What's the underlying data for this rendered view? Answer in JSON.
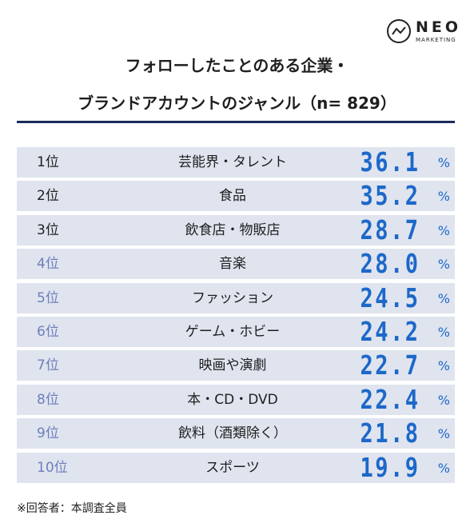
{
  "logo": {
    "main": "NEO",
    "sub": "MARKETING"
  },
  "title_line1": "フォローしたことのある企業・",
  "title_line2": "ブランドアカウントのジャンル（n= 829）",
  "footnote": "※回答者：本調査全員",
  "colors": {
    "value": "#1d68c9",
    "row_bg": "#dfe4ef",
    "rank_top": "#1f1f1f",
    "rank_low": "#6f7fb8",
    "rule": "#1a2a5a"
  },
  "chart_data": {
    "type": "table",
    "title": "フォローしたことのある企業・ブランドアカウントのジャンル（n= 829）",
    "unit": "%",
    "rows": [
      {
        "rank": "1位",
        "genre": "芸能界・タレント",
        "value": "36.1"
      },
      {
        "rank": "2位",
        "genre": "食品",
        "value": "35.2"
      },
      {
        "rank": "3位",
        "genre": "飲食店・物販店",
        "value": "28.7"
      },
      {
        "rank": "4位",
        "genre": "音楽",
        "value": "28.0"
      },
      {
        "rank": "5位",
        "genre": "ファッション",
        "value": "24.5"
      },
      {
        "rank": "6位",
        "genre": "ゲーム・ホビー",
        "value": "24.2"
      },
      {
        "rank": "7位",
        "genre": "映画や演劇",
        "value": "22.7"
      },
      {
        "rank": "8位",
        "genre": "本・CD・DVD",
        "value": "22.4"
      },
      {
        "rank": "9位",
        "genre": "飲料（酒類除く）",
        "value": "21.8"
      },
      {
        "rank": "10位",
        "genre": "スポーツ",
        "value": "19.9"
      }
    ]
  }
}
